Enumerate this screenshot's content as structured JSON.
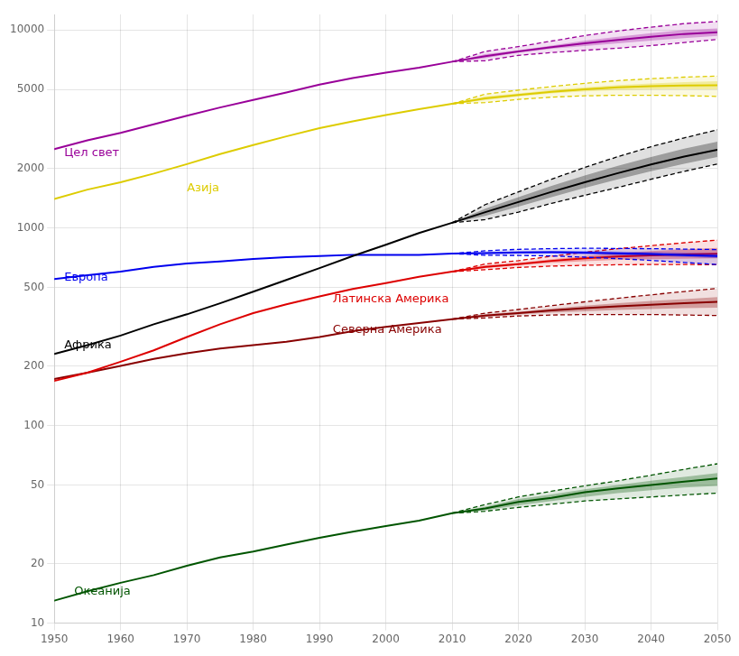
{
  "chart_data": {
    "type": "line",
    "log": "y",
    "grid": true,
    "xlim": [
      1950,
      2050
    ],
    "xticks": [
      1950,
      1960,
      1970,
      1980,
      1990,
      2000,
      2010,
      2020,
      2030,
      2040,
      2050
    ],
    "ylim": [
      10,
      12000
    ],
    "yticks": [
      10,
      20,
      50,
      100,
      200,
      500,
      1000,
      2000,
      5000,
      10000
    ],
    "x": [
      1950,
      1955,
      1960,
      1965,
      1970,
      1975,
      1980,
      1985,
      1990,
      1995,
      2000,
      2005,
      2010,
      2015,
      2020,
      2025,
      2030,
      2035,
      2040,
      2045,
      2050
    ],
    "series": [
      {
        "name": "Цел свет",
        "color": "#990099",
        "values": [
          2500,
          2770,
          3020,
          3340,
          3690,
          4060,
          4435,
          4835,
          5300,
          5720,
          6090,
          6460,
          6920,
          7380,
          7800,
          8200,
          8570,
          8920,
          9240,
          9560,
          9750
        ],
        "inner_low": [
          null,
          null,
          null,
          null,
          null,
          null,
          null,
          null,
          null,
          null,
          null,
          null,
          6920,
          7200,
          7700,
          8050,
          8300,
          8580,
          8850,
          9100,
          9350
        ],
        "inner_high": [
          null,
          null,
          null,
          null,
          null,
          null,
          null,
          null,
          null,
          null,
          null,
          null,
          6920,
          7560,
          7900,
          8350,
          8840,
          9260,
          9640,
          10010,
          10200
        ],
        "outer_low": [
          null,
          null,
          null,
          null,
          null,
          null,
          null,
          null,
          null,
          null,
          null,
          null,
          6920,
          7000,
          7450,
          7700,
          7900,
          8100,
          8350,
          8650,
          8980
        ],
        "outer_high": [
          null,
          null,
          null,
          null,
          null,
          null,
          null,
          null,
          null,
          null,
          null,
          null,
          6920,
          7800,
          8250,
          8800,
          9380,
          9900,
          10350,
          10780,
          11050
        ]
      },
      {
        "name": "Азија",
        "color": "#ddcc00",
        "values": [
          1400,
          1560,
          1700,
          1880,
          2100,
          2360,
          2620,
          2900,
          3190,
          3450,
          3720,
          3980,
          4240,
          4520,
          4700,
          4870,
          5020,
          5130,
          5200,
          5240,
          5260
        ],
        "inner_low": [
          null,
          null,
          null,
          null,
          null,
          null,
          null,
          null,
          null,
          null,
          null,
          null,
          4240,
          4420,
          4620,
          4780,
          4900,
          4980,
          5020,
          5030,
          5020
        ],
        "inner_high": [
          null,
          null,
          null,
          null,
          null,
          null,
          null,
          null,
          null,
          null,
          null,
          null,
          4240,
          4620,
          4790,
          4970,
          5130,
          5270,
          5370,
          5450,
          5510
        ],
        "outer_low": [
          null,
          null,
          null,
          null,
          null,
          null,
          null,
          null,
          null,
          null,
          null,
          null,
          4240,
          4300,
          4460,
          4580,
          4650,
          4680,
          4680,
          4660,
          4620
        ],
        "outer_high": [
          null,
          null,
          null,
          null,
          null,
          null,
          null,
          null,
          null,
          null,
          null,
          null,
          4240,
          4740,
          4970,
          5180,
          5380,
          5550,
          5680,
          5780,
          5850
        ]
      },
      {
        "name": "Африка",
        "color": "#000000",
        "values": [
          230,
          255,
          285,
          325,
          365,
          415,
          475,
          545,
          625,
          720,
          820,
          940,
          1060,
          1200,
          1350,
          1520,
          1700,
          1890,
          2090,
          2290,
          2480
        ],
        "inner_low": [
          null,
          null,
          null,
          null,
          null,
          null,
          null,
          null,
          null,
          null,
          null,
          null,
          1060,
          1150,
          1280,
          1430,
          1590,
          1760,
          1930,
          2110,
          2280
        ],
        "inner_high": [
          null,
          null,
          null,
          null,
          null,
          null,
          null,
          null,
          null,
          null,
          null,
          null,
          1060,
          1250,
          1430,
          1630,
          1840,
          2060,
          2280,
          2510,
          2730
        ],
        "outer_low": [
          null,
          null,
          null,
          null,
          null,
          null,
          null,
          null,
          null,
          null,
          null,
          null,
          1060,
          1100,
          1200,
          1330,
          1460,
          1600,
          1760,
          1930,
          2100
        ],
        "outer_high": [
          null,
          null,
          null,
          null,
          null,
          null,
          null,
          null,
          null,
          null,
          null,
          null,
          1060,
          1310,
          1520,
          1760,
          2020,
          2290,
          2570,
          2850,
          3130
        ]
      },
      {
        "name": "Европа",
        "color": "#0000ee",
        "values": [
          550,
          575,
          600,
          635,
          660,
          675,
          695,
          710,
          720,
          730,
          730,
          730,
          740,
          745,
          750,
          752,
          748,
          742,
          736,
          728,
          720
        ],
        "inner_low": [
          null,
          null,
          null,
          null,
          null,
          null,
          null,
          null,
          null,
          null,
          null,
          null,
          740,
          737,
          740,
          740,
          734,
          728,
          720,
          712,
          703
        ],
        "inner_high": [
          null,
          null,
          null,
          null,
          null,
          null,
          null,
          null,
          null,
          null,
          null,
          null,
          740,
          753,
          760,
          764,
          764,
          758,
          754,
          748,
          742
        ],
        "outer_low": [
          null,
          null,
          null,
          null,
          null,
          null,
          null,
          null,
          null,
          null,
          null,
          null,
          740,
          726,
          725,
          720,
          710,
          698,
          684,
          668,
          652
        ],
        "outer_high": [
          null,
          null,
          null,
          null,
          null,
          null,
          null,
          null,
          null,
          null,
          null,
          null,
          740,
          765,
          778,
          784,
          788,
          786,
          784,
          780,
          776
        ]
      },
      {
        "name": "Латинска Америка",
        "color": "#dd0000",
        "values": [
          168,
          185,
          210,
          240,
          280,
          325,
          370,
          410,
          450,
          490,
          525,
          565,
          600,
          635,
          655,
          680,
          700,
          715,
          726,
          733,
          738
        ],
        "inner_low": [
          null,
          null,
          null,
          null,
          null,
          null,
          null,
          null,
          null,
          null,
          null,
          null,
          600,
          626,
          648,
          665,
          678,
          688,
          694,
          698,
          700
        ],
        "inner_high": [
          null,
          null,
          null,
          null,
          null,
          null,
          null,
          null,
          null,
          null,
          null,
          null,
          600,
          644,
          665,
          694,
          720,
          744,
          762,
          778,
          790
        ],
        "outer_low": [
          null,
          null,
          null,
          null,
          null,
          null,
          null,
          null,
          null,
          null,
          null,
          null,
          600,
          614,
          630,
          640,
          646,
          650,
          652,
          652,
          650
        ],
        "outer_high": [
          null,
          null,
          null,
          null,
          null,
          null,
          null,
          null,
          null,
          null,
          null,
          null,
          600,
          656,
          682,
          718,
          752,
          784,
          812,
          840,
          866
        ]
      },
      {
        "name": "Северна Америка",
        "color": "#880000",
        "values": [
          172,
          185,
          200,
          217,
          232,
          245,
          255,
          265,
          280,
          300,
          315,
          330,
          345,
          360,
          370,
          382,
          392,
          400,
          408,
          416,
          422
        ],
        "inner_low": [
          null,
          null,
          null,
          null,
          null,
          null,
          null,
          null,
          null,
          null,
          null,
          null,
          345,
          355,
          364,
          372,
          378,
          384,
          388,
          392,
          394
        ],
        "inner_high": [
          null,
          null,
          null,
          null,
          null,
          null,
          null,
          null,
          null,
          null,
          null,
          null,
          345,
          365,
          376,
          390,
          404,
          416,
          426,
          436,
          446
        ],
        "outer_low": [
          null,
          null,
          null,
          null,
          null,
          null,
          null,
          null,
          null,
          null,
          null,
          null,
          345,
          350,
          358,
          362,
          364,
          364,
          364,
          362,
          360
        ],
        "outer_high": [
          null,
          null,
          null,
          null,
          null,
          null,
          null,
          null,
          null,
          null,
          null,
          null,
          345,
          370,
          386,
          404,
          422,
          440,
          458,
          476,
          494
        ]
      },
      {
        "name": "Океанија",
        "color": "#005500",
        "values": [
          13,
          14.5,
          16,
          17.5,
          19.5,
          21.5,
          23,
          25,
          27,
          29,
          31,
          33,
          36,
          38,
          41,
          43,
          46,
          48,
          50,
          52,
          54
        ],
        "inner_low": [
          null,
          null,
          null,
          null,
          null,
          null,
          null,
          null,
          null,
          null,
          null,
          null,
          36,
          37.2,
          39.5,
          41.5,
          43.5,
          45.5,
          47,
          48.5,
          49.5
        ],
        "inner_high": [
          null,
          null,
          null,
          null,
          null,
          null,
          null,
          null,
          null,
          null,
          null,
          null,
          36,
          38.8,
          42.5,
          44.8,
          47.5,
          50,
          52.5,
          55,
          57.5
        ],
        "outer_low": [
          null,
          null,
          null,
          null,
          null,
          null,
          null,
          null,
          null,
          null,
          null,
          null,
          36,
          36.8,
          38.5,
          40,
          41.5,
          42.5,
          43.5,
          44.5,
          45.5
        ],
        "outer_high": [
          null,
          null,
          null,
          null,
          null,
          null,
          null,
          null,
          null,
          null,
          null,
          null,
          36,
          39.8,
          43.5,
          46.5,
          49.5,
          52.5,
          56,
          60,
          64
        ]
      }
    ],
    "annotations": [
      {
        "text": "Цел свет",
        "x": 1951.5,
        "y": 2400,
        "color": "#990099"
      },
      {
        "text": "Азија",
        "x": 1970,
        "y": 1580,
        "color": "#ddcc00"
      },
      {
        "text": "Африка",
        "x": 1951.5,
        "y": 255,
        "color": "#000000"
      },
      {
        "text": "Европа",
        "x": 1951.5,
        "y": 560,
        "color": "#0000ee"
      },
      {
        "text": "Латинска Америка",
        "x": 1992,
        "y": 435,
        "color": "#dd0000"
      },
      {
        "text": "Северна Америка",
        "x": 1992,
        "y": 305,
        "color": "#880000"
      },
      {
        "text": "Океанија",
        "x": 1953,
        "y": 14.5,
        "color": "#005500"
      }
    ]
  }
}
